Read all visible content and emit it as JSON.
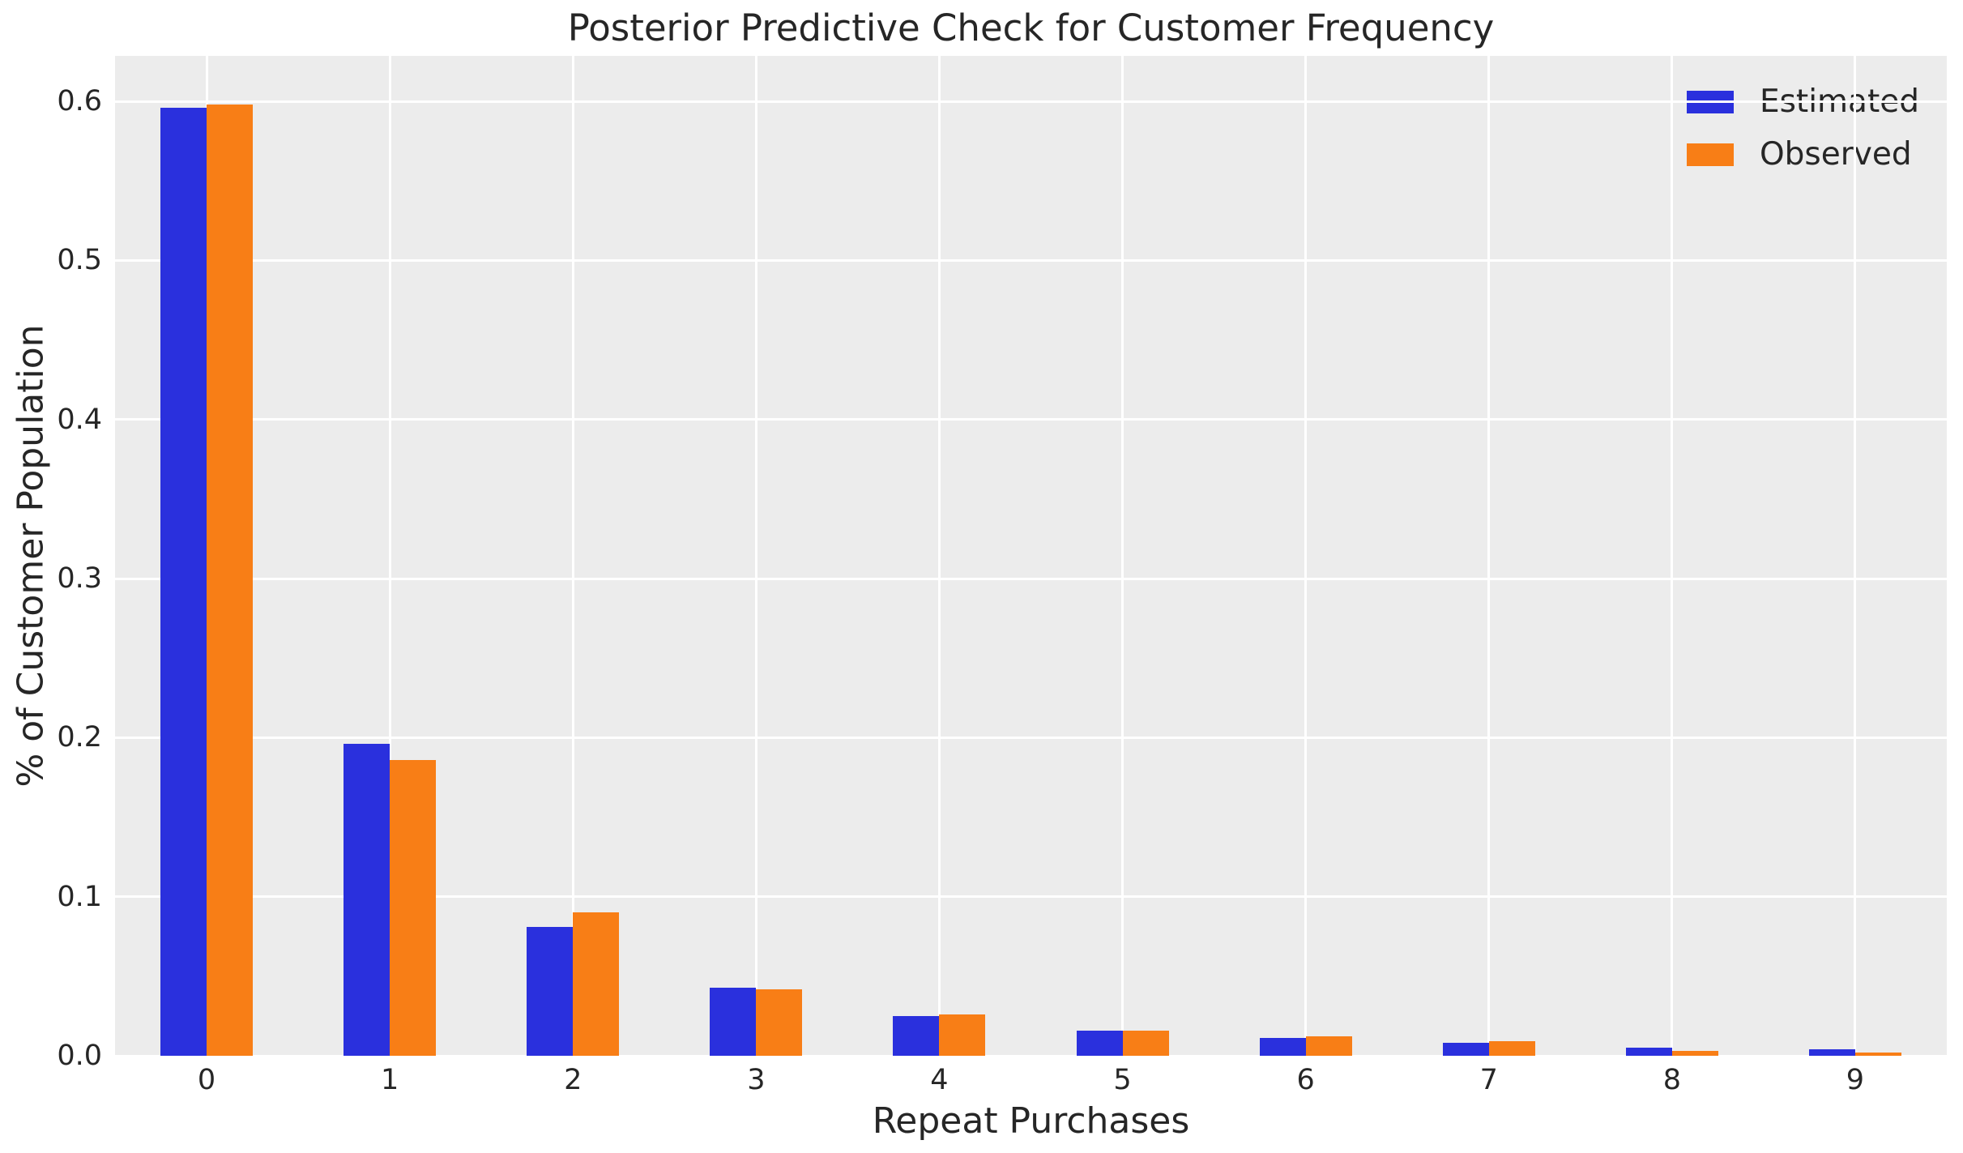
{
  "figure": {
    "kind": "matplotlib-bar-chart"
  },
  "chart_data": {
    "type": "bar",
    "title": "Posterior Predictive Check for Customer Frequency",
    "xlabel": "Repeat Purchases",
    "ylabel": "% of Customer Population",
    "categories": [
      "0",
      "1",
      "2",
      "3",
      "4",
      "5",
      "6",
      "7",
      "8",
      "9"
    ],
    "series": [
      {
        "name": "Estimated",
        "color": "#2a30dd",
        "values": [
          0.596,
          0.196,
          0.081,
          0.043,
          0.025,
          0.016,
          0.011,
          0.008,
          0.005,
          0.004
        ]
      },
      {
        "name": "Observed",
        "color": "#f87e16",
        "values": [
          0.598,
          0.186,
          0.09,
          0.042,
          0.026,
          0.016,
          0.012,
          0.009,
          0.003,
          0.002
        ]
      }
    ],
    "ylim": [
      0,
      0.6286
    ],
    "yticks": [
      0.0,
      0.1,
      0.2,
      0.3,
      0.4,
      0.5,
      0.6
    ],
    "ytick_labels": [
      "0.0",
      "0.1",
      "0.2",
      "0.3",
      "0.4",
      "0.5",
      "0.6"
    ],
    "grid": true,
    "legend_position": "upper right",
    "colors": {
      "plot_background": "#ececec",
      "figure_background": "#ffffff",
      "gridline": "#ffffff",
      "text": "#262626"
    }
  }
}
